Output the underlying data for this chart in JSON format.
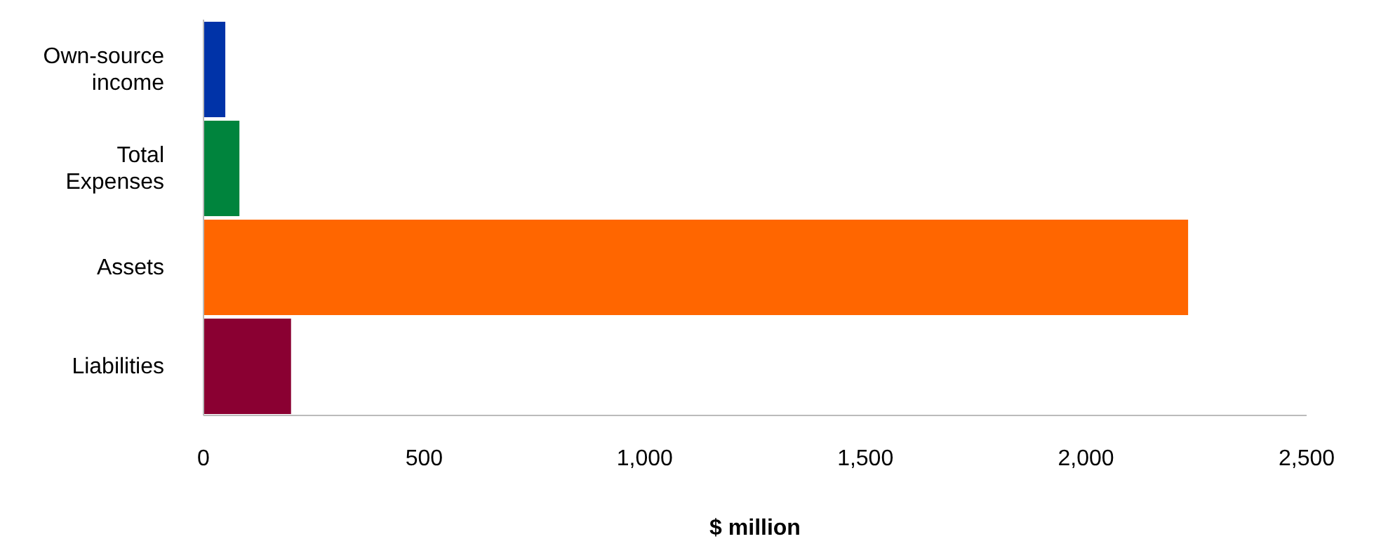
{
  "chart_data": {
    "type": "bar",
    "orientation": "horizontal",
    "categories": [
      "Own-source income",
      "Total Expenses",
      "Assets",
      "Liabilities"
    ],
    "values": [
      51,
      83,
      2233,
      200
    ],
    "colors": [
      "#0033a8",
      "#00843d",
      "#ff6600",
      "#8a0032"
    ],
    "xlabel": "$ million",
    "xlim": [
      0,
      2500
    ],
    "xticks": [
      0,
      500,
      {
        "value": 1000,
        "label": "1,000"
      },
      {
        "value": 1500,
        "label": "1,500"
      },
      {
        "value": 2000,
        "label": "2,000"
      },
      {
        "value": 2500,
        "label": "2,500"
      }
    ],
    "grid": false,
    "legend": false
  }
}
